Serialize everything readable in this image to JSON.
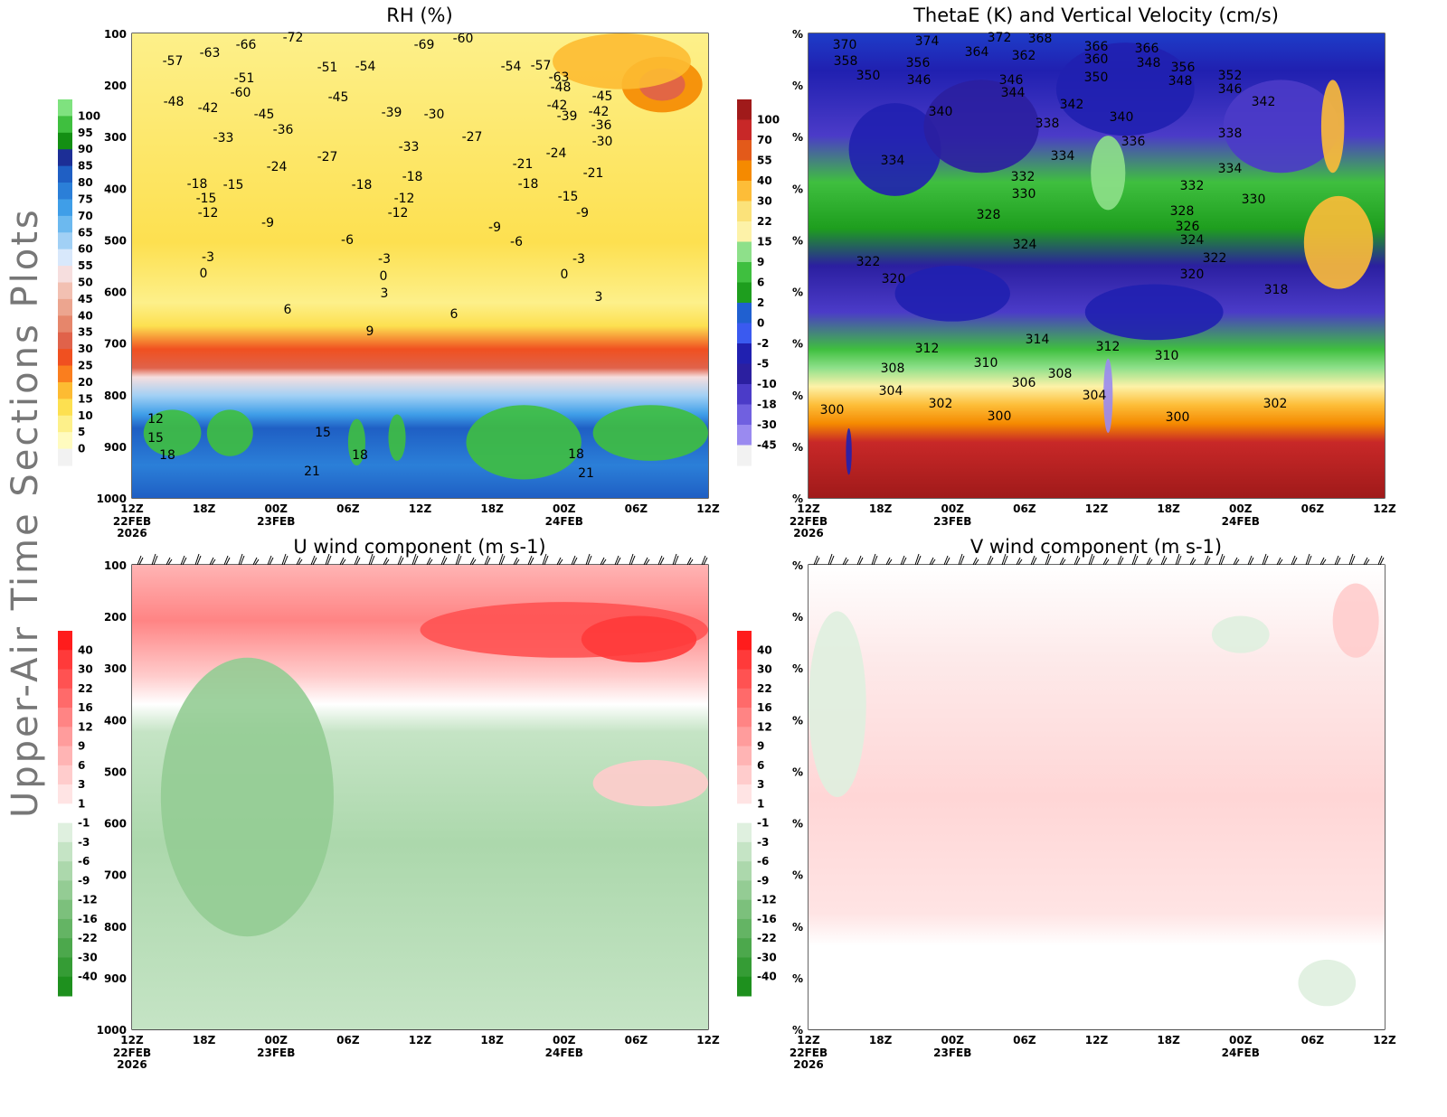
{
  "page_title": "Upper-Air Time Sections Plots",
  "time_axis": {
    "labels": [
      "12Z",
      "18Z",
      "00Z",
      "06Z",
      "12Z",
      "18Z",
      "00Z",
      "06Z",
      "12Z"
    ],
    "dates": [
      {
        "idx": 0,
        "lines": [
          "22FEB",
          "2026"
        ]
      },
      {
        "idx": 2,
        "lines": [
          "23FEB"
        ]
      },
      {
        "idx": 6,
        "lines": [
          "24FEB"
        ]
      }
    ]
  },
  "chart_data": [
    {
      "id": "rh",
      "type": "heatmap",
      "title": "RH (%)",
      "xlabel": "",
      "ylabel": "",
      "y_ticks": [
        "100",
        "200",
        "300",
        "400",
        "500",
        "600",
        "700",
        "800",
        "900",
        "1000"
      ],
      "ylim": [
        100,
        1000
      ],
      "colorbar": {
        "labels": [
          "100",
          "95",
          "90",
          "85",
          "80",
          "75",
          "70",
          "65",
          "60",
          "55",
          "50",
          "45",
          "40",
          "35",
          "30",
          "25",
          "20",
          "15",
          "10",
          "5",
          "0"
        ],
        "colors": [
          "#7fe27f",
          "#3fbf3f",
          "#138f13",
          "#1c2e96",
          "#1f5fc4",
          "#2b7fd8",
          "#3f9ee8",
          "#6cb9ef",
          "#a1d0f5",
          "#d8e8fb",
          "#f6dede",
          "#f2c0b2",
          "#eca58f",
          "#e6866b",
          "#e0624a",
          "#f05020",
          "#fa7e1e",
          "#fdbb32",
          "#fde050",
          "#fdf08a",
          "#fffbbf",
          "#f2f2f2"
        ]
      },
      "temperature_labels": [
        "-72",
        "-69",
        "-66",
        "-63",
        "-60",
        "-57",
        "-54",
        "-51",
        "-48",
        "-45",
        "-42",
        "-39",
        "-36",
        "-33",
        "-30",
        "-27",
        "-24",
        "-21",
        "-18",
        "-15",
        "-12",
        "-9",
        "-6",
        "-3",
        "0",
        "3",
        "6",
        "9",
        "12",
        "15",
        "18",
        "21"
      ]
    },
    {
      "id": "thetae",
      "type": "heatmap",
      "title": "ThetaE (K) and Vertical Velocity (cm/s)",
      "xlabel": "",
      "ylabel": "",
      "y_ticks": [
        "%",
        "%",
        "%",
        "%",
        "%",
        "%",
        "%",
        "%",
        "%",
        "%"
      ],
      "colorbar": {
        "labels": [
          "100",
          "70",
          "55",
          "40",
          "30",
          "22",
          "15",
          "9",
          "6",
          "2",
          "0",
          "-2",
          "-5",
          "-10",
          "-18",
          "-30",
          "-45"
        ],
        "colors": [
          "#a01a1a",
          "#c82828",
          "#e35a1a",
          "#f58a00",
          "#fdbd38",
          "#fbe27a",
          "#fdf2a8",
          "#8ee08a",
          "#3fbf3f",
          "#1e9e1e",
          "#2060d0",
          "#3a5af0",
          "#2020b0",
          "#2b1fa0",
          "#4b3bc8",
          "#7060e0",
          "#9a8af0",
          "#f2f2f2"
        ]
      },
      "thetae_labels": [
        "370",
        "374",
        "372",
        "368",
        "366",
        "364",
        "362",
        "360",
        "358",
        "356",
        "352",
        "350",
        "348",
        "346",
        "344",
        "342",
        "340",
        "338",
        "336",
        "334",
        "332",
        "330",
        "328",
        "326",
        "324",
        "322",
        "320",
        "318",
        "314",
        "312",
        "310",
        "308",
        "306",
        "304",
        "302",
        "300"
      ]
    },
    {
      "id": "uwind",
      "type": "heatmap",
      "title": "U wind component (m s-1)",
      "xlabel": "",
      "ylabel": "",
      "y_ticks": [
        "100",
        "200",
        "300",
        "400",
        "500",
        "600",
        "700",
        "800",
        "900",
        "1000"
      ],
      "ylim": [
        100,
        1000
      ],
      "colorbar": {
        "labels": [
          "40",
          "30",
          "22",
          "16",
          "12",
          "9",
          "6",
          "3",
          "1",
          "-1",
          "-3",
          "-6",
          "-9",
          "-12",
          "-16",
          "-22",
          "-30",
          "-40"
        ],
        "colors": [
          "#ff1c1c",
          "#ff3a3a",
          "#ff5252",
          "#ff6a6a",
          "#ff8484",
          "#ff9c9c",
          "#ffb4b4",
          "#ffcccc",
          "#ffe4e4",
          "#ffffff",
          "#dff0df",
          "#c5e4c5",
          "#acd8ac",
          "#94cc94",
          "#7cc07c",
          "#64b464",
          "#4ca84c",
          "#359c35",
          "#1e901e"
        ]
      }
    },
    {
      "id": "vwind",
      "type": "heatmap",
      "title": "V wind component (m s-1)",
      "xlabel": "",
      "ylabel": "",
      "y_ticks": [
        "%",
        "%",
        "%",
        "%",
        "%",
        "%",
        "%",
        "%",
        "%",
        "%"
      ],
      "colorbar": {
        "labels": [
          "40",
          "30",
          "22",
          "16",
          "12",
          "9",
          "6",
          "3",
          "1",
          "-1",
          "-3",
          "-6",
          "-9",
          "-12",
          "-16",
          "-22",
          "-30",
          "-40"
        ],
        "colors": [
          "#ff1c1c",
          "#ff3a3a",
          "#ff5252",
          "#ff6a6a",
          "#ff8484",
          "#ff9c9c",
          "#ffb4b4",
          "#ffcccc",
          "#ffe4e4",
          "#ffffff",
          "#dff0df",
          "#c5e4c5",
          "#acd8ac",
          "#94cc94",
          "#7cc07c",
          "#64b464",
          "#4ca84c",
          "#359c35",
          "#1e901e"
        ]
      }
    }
  ]
}
